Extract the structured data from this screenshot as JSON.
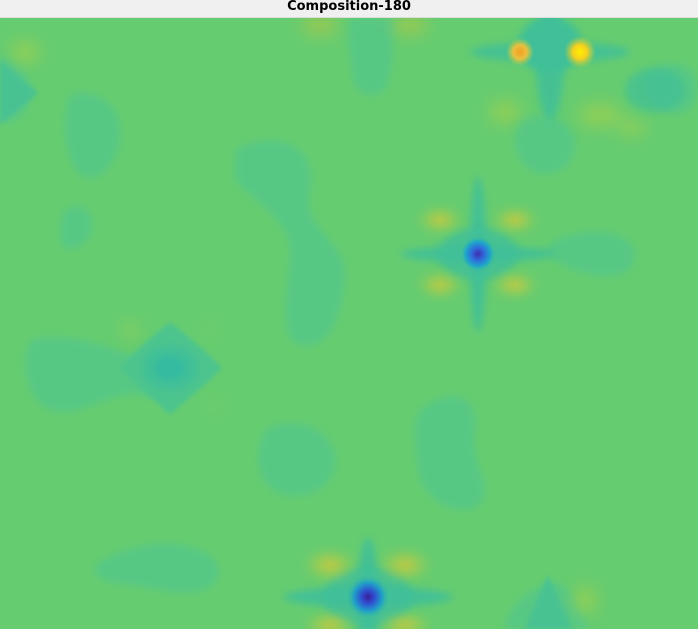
{
  "window": {
    "title": "Composition-180"
  },
  "palette": {
    "background": "#66cc70",
    "light_teal": "#55c788",
    "teal": "#3fbf9a",
    "cyan": "#20a8c8",
    "blue": "#2f6bdc",
    "deep_blue": "#3f2fb0",
    "yellow_green": "#a9d04a",
    "orange": "#f0a830",
    "yellow": "#f5e21c"
  }
}
